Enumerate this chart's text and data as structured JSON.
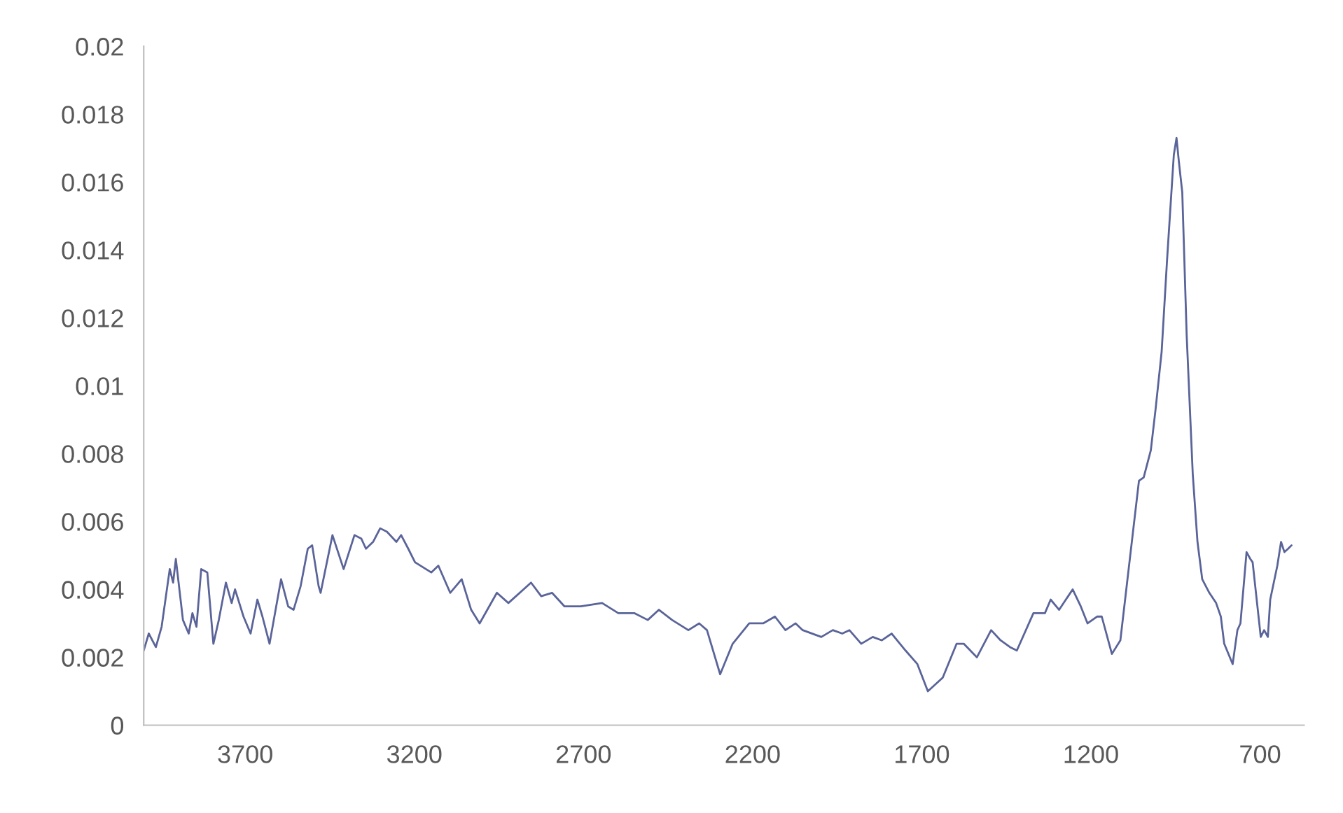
{
  "chart_data": {
    "type": "line",
    "xlim": [
      4000,
      570
    ],
    "xticks": [
      3700,
      3200,
      2700,
      2200,
      1700,
      1200,
      700
    ],
    "ylim": [
      0,
      0.02
    ],
    "yticks": [
      0,
      0.002,
      0.004,
      0.006,
      0.008,
      0.01,
      0.012,
      0.014,
      0.016,
      0.018,
      0.02
    ],
    "grid": false,
    "legend": false,
    "marker": "none",
    "line_style": "solid",
    "series": [
      {
        "color": "#5a6499",
        "x": [
          4000,
          3985,
          3964,
          3947,
          3923,
          3913,
          3905,
          3884,
          3867,
          3856,
          3844,
          3830,
          3812,
          3794,
          3778,
          3757,
          3740,
          3730,
          3705,
          3684,
          3664,
          3649,
          3628,
          3594,
          3573,
          3557,
          3536,
          3515,
          3502,
          3483,
          3477,
          3442,
          3409,
          3377,
          3357,
          3343,
          3322,
          3301,
          3281,
          3253,
          3239,
          3218,
          3198,
          3150,
          3129,
          3094,
          3060,
          3032,
          3007,
          2956,
          2922,
          2855,
          2825,
          2793,
          2756,
          2708,
          2645,
          2597,
          2549,
          2510,
          2477,
          2438,
          2390,
          2358,
          2335,
          2296,
          2259,
          2210,
          2169,
          2134,
          2103,
          2073,
          2052,
          1997,
          1963,
          1935,
          1914,
          1879,
          1845,
          1818,
          1789,
          1748,
          1713,
          1682,
          1638,
          1597,
          1576,
          1537,
          1495,
          1467,
          1439,
          1419,
          1370,
          1336,
          1319,
          1294,
          1254,
          1230,
          1210,
          1182,
          1168,
          1138,
          1113,
          1085,
          1058,
          1044,
          1023,
          1009,
          991,
          975,
          955,
          947,
          940,
          930,
          917,
          899,
          885,
          871,
          850,
          830,
          816,
          806,
          781,
          767,
          758,
          740,
          729,
          722,
          698,
          688,
          677,
          670,
          649,
          638,
          628,
          617,
          607
        ],
        "values": [
          0.0022,
          0.0027,
          0.0023,
          0.0029,
          0.0046,
          0.0042,
          0.0049,
          0.0031,
          0.0027,
          0.0033,
          0.0029,
          0.0046,
          0.0045,
          0.0024,
          0.0031,
          0.0042,
          0.0036,
          0.004,
          0.0032,
          0.0027,
          0.0037,
          0.0032,
          0.0024,
          0.0043,
          0.0035,
          0.0034,
          0.0041,
          0.0052,
          0.0053,
          0.0041,
          0.0039,
          0.0056,
          0.0046,
          0.0056,
          0.0055,
          0.0052,
          0.0054,
          0.0058,
          0.0057,
          0.0054,
          0.0056,
          0.0052,
          0.0048,
          0.0045,
          0.0047,
          0.0039,
          0.0043,
          0.0034,
          0.003,
          0.0039,
          0.0036,
          0.0042,
          0.0038,
          0.0039,
          0.0035,
          0.0035,
          0.0036,
          0.0033,
          0.0033,
          0.0031,
          0.0034,
          0.0031,
          0.0028,
          0.003,
          0.0028,
          0.0015,
          0.0024,
          0.003,
          0.003,
          0.0032,
          0.0028,
          0.003,
          0.0028,
          0.0026,
          0.0028,
          0.0027,
          0.0028,
          0.0024,
          0.0026,
          0.0025,
          0.0027,
          0.0022,
          0.0018,
          0.001,
          0.0014,
          0.0024,
          0.0024,
          0.002,
          0.0028,
          0.0025,
          0.0023,
          0.0022,
          0.0033,
          0.0033,
          0.0037,
          0.0034,
          0.004,
          0.0035,
          0.003,
          0.0032,
          0.0032,
          0.0021,
          0.0025,
          0.0049,
          0.0072,
          0.0073,
          0.0081,
          0.0093,
          0.011,
          0.0137,
          0.0168,
          0.0173,
          0.0166,
          0.0157,
          0.0115,
          0.0074,
          0.0054,
          0.0043,
          0.0039,
          0.0036,
          0.0032,
          0.0024,
          0.0018,
          0.0028,
          0.003,
          0.0051,
          0.0049,
          0.0048,
          0.0026,
          0.0028,
          0.0026,
          0.0037,
          0.0047,
          0.0054,
          0.0051,
          0.0052,
          0.0053
        ]
      }
    ]
  }
}
